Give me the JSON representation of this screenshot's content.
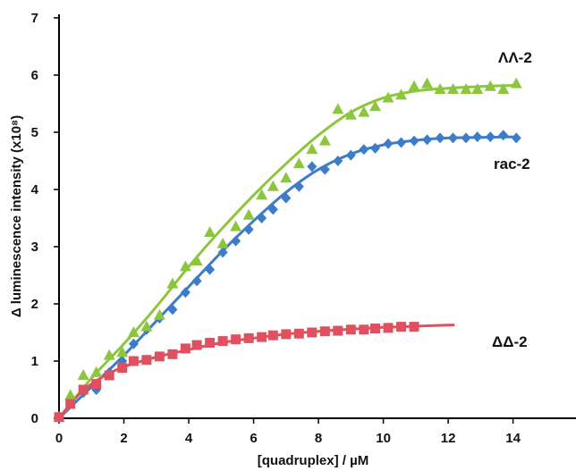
{
  "chart_data": {
    "type": "scatter",
    "xlabel": "[quadruplex] / µM",
    "ylabel": "Δ luminescence intensity (x10⁸)",
    "xlim": [
      0,
      15.5
    ],
    "ylim": [
      0,
      7
    ],
    "x_ticks": [
      0,
      2,
      4,
      6,
      8,
      10,
      12,
      14
    ],
    "y_ticks": [
      0,
      1,
      2,
      3,
      4,
      5,
      6,
      7
    ],
    "grid": false,
    "series": [
      {
        "name": "ΛΛ-2",
        "color": "#8cc63f",
        "marker": "triangle",
        "points": [
          [
            0,
            0.02
          ],
          [
            0.35,
            0.4
          ],
          [
            0.75,
            0.75
          ],
          [
            1.15,
            0.8
          ],
          [
            1.55,
            1.1
          ],
          [
            1.95,
            1.15
          ],
          [
            2.3,
            1.5
          ],
          [
            2.7,
            1.6
          ],
          [
            3.1,
            1.8
          ],
          [
            3.5,
            2.35
          ],
          [
            3.9,
            2.65
          ],
          [
            4.25,
            2.75
          ],
          [
            4.65,
            3.25
          ],
          [
            5.05,
            3.05
          ],
          [
            5.45,
            3.35
          ],
          [
            5.85,
            3.55
          ],
          [
            6.25,
            3.9
          ],
          [
            6.6,
            4.05
          ],
          [
            7.0,
            4.2
          ],
          [
            7.4,
            4.45
          ],
          [
            7.8,
            4.7
          ],
          [
            8.2,
            4.85
          ],
          [
            8.6,
            5.4
          ],
          [
            9.0,
            5.3
          ],
          [
            9.4,
            5.35
          ],
          [
            9.75,
            5.45
          ],
          [
            10.15,
            5.6
          ],
          [
            10.55,
            5.65
          ],
          [
            10.95,
            5.8
          ],
          [
            11.35,
            5.85
          ],
          [
            11.75,
            5.75
          ],
          [
            12.15,
            5.75
          ],
          [
            12.55,
            5.75
          ],
          [
            12.9,
            5.75
          ],
          [
            13.3,
            5.8
          ],
          [
            13.7,
            5.75
          ],
          [
            14.1,
            5.85
          ]
        ],
        "fit": [
          [
            0,
            0
          ],
          [
            1,
            0.7
          ],
          [
            2,
            1.3
          ],
          [
            3,
            1.95
          ],
          [
            4,
            2.65
          ],
          [
            5,
            3.3
          ],
          [
            6,
            3.9
          ],
          [
            7,
            4.45
          ],
          [
            8,
            4.95
          ],
          [
            9,
            5.35
          ],
          [
            10,
            5.6
          ],
          [
            11,
            5.72
          ],
          [
            12,
            5.77
          ],
          [
            13,
            5.8
          ],
          [
            14,
            5.82
          ]
        ]
      },
      {
        "name": "rac-2",
        "color": "#3d7cc9",
        "marker": "diamond",
        "points": [
          [
            0,
            0.02
          ],
          [
            0.35,
            0.3
          ],
          [
            0.75,
            0.45
          ],
          [
            1.15,
            0.5
          ],
          [
            1.55,
            0.8
          ],
          [
            1.95,
            1.0
          ],
          [
            2.3,
            1.3
          ],
          [
            2.7,
            1.55
          ],
          [
            3.1,
            1.75
          ],
          [
            3.5,
            1.9
          ],
          [
            3.9,
            2.2
          ],
          [
            4.25,
            2.4
          ],
          [
            4.65,
            2.6
          ],
          [
            5.05,
            2.9
          ],
          [
            5.45,
            3.1
          ],
          [
            5.85,
            3.3
          ],
          [
            6.25,
            3.5
          ],
          [
            6.6,
            3.65
          ],
          [
            7.0,
            3.85
          ],
          [
            7.4,
            4.05
          ],
          [
            7.8,
            4.4
          ],
          [
            8.2,
            4.35
          ],
          [
            8.6,
            4.5
          ],
          [
            9.0,
            4.6
          ],
          [
            9.4,
            4.7
          ],
          [
            9.75,
            4.72
          ],
          [
            10.15,
            4.8
          ],
          [
            10.55,
            4.82
          ],
          [
            10.95,
            4.85
          ],
          [
            11.35,
            4.87
          ],
          [
            11.75,
            4.9
          ],
          [
            12.15,
            4.9
          ],
          [
            12.55,
            4.9
          ],
          [
            12.9,
            4.92
          ],
          [
            13.3,
            4.92
          ],
          [
            13.7,
            4.95
          ],
          [
            14.1,
            4.9
          ]
        ],
        "fit": [
          [
            0,
            0
          ],
          [
            1,
            0.55
          ],
          [
            2,
            1.1
          ],
          [
            3,
            1.7
          ],
          [
            4,
            2.3
          ],
          [
            5,
            2.9
          ],
          [
            6,
            3.45
          ],
          [
            7,
            3.95
          ],
          [
            8,
            4.35
          ],
          [
            9,
            4.62
          ],
          [
            10,
            4.78
          ],
          [
            11,
            4.86
          ],
          [
            12,
            4.9
          ],
          [
            13,
            4.91
          ],
          [
            14,
            4.92
          ]
        ]
      },
      {
        "name": "ΔΔ-2",
        "color": "#e0505f",
        "marker": "square",
        "points": [
          [
            0,
            0.02
          ],
          [
            0.35,
            0.25
          ],
          [
            0.75,
            0.5
          ],
          [
            1.15,
            0.6
          ],
          [
            1.55,
            0.75
          ],
          [
            1.95,
            0.88
          ],
          [
            2.3,
            1.0
          ],
          [
            2.7,
            1.02
          ],
          [
            3.1,
            1.08
          ],
          [
            3.5,
            1.12
          ],
          [
            3.9,
            1.22
          ],
          [
            4.25,
            1.28
          ],
          [
            4.65,
            1.32
          ],
          [
            5.05,
            1.35
          ],
          [
            5.45,
            1.38
          ],
          [
            5.85,
            1.4
          ],
          [
            6.25,
            1.42
          ],
          [
            6.6,
            1.45
          ],
          [
            7.0,
            1.47
          ],
          [
            7.4,
            1.48
          ],
          [
            7.8,
            1.5
          ],
          [
            8.2,
            1.52
          ],
          [
            8.6,
            1.53
          ],
          [
            9.0,
            1.55
          ],
          [
            9.4,
            1.55
          ],
          [
            9.75,
            1.57
          ],
          [
            10.15,
            1.58
          ],
          [
            10.55,
            1.6
          ],
          [
            10.95,
            1.6
          ]
        ],
        "fit": [
          [
            0,
            0
          ],
          [
            0.5,
            0.35
          ],
          [
            1,
            0.6
          ],
          [
            1.5,
            0.77
          ],
          [
            2,
            0.9
          ],
          [
            3,
            1.07
          ],
          [
            4,
            1.2
          ],
          [
            5,
            1.32
          ],
          [
            6,
            1.4
          ],
          [
            7,
            1.47
          ],
          [
            8,
            1.52
          ],
          [
            9,
            1.56
          ],
          [
            10,
            1.59
          ],
          [
            11,
            1.61
          ],
          [
            12,
            1.63
          ],
          [
            12.2,
            1.63
          ]
        ]
      }
    ]
  }
}
